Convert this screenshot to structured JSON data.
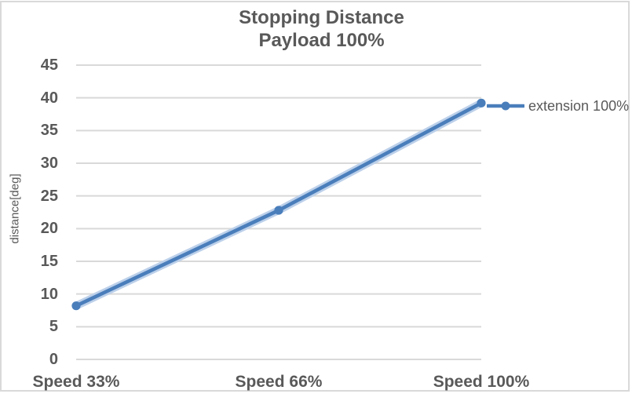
{
  "chart": {
    "title_line1": "Stopping Distance",
    "title_line2": "Payload 100%",
    "y_axis_title": "distance[deg]"
  },
  "chart_data": {
    "type": "line",
    "title": "Stopping Distance Payload 100%",
    "categories": [
      "Speed 33%",
      "Speed 66%",
      "Speed 100%"
    ],
    "series": [
      {
        "name": "extension 100%",
        "values": [
          8.2,
          22.8,
          39.2
        ]
      }
    ],
    "xlabel": "",
    "ylabel": "distance[deg]",
    "ylim": [
      0,
      45
    ],
    "yticks": [
      0,
      5,
      10,
      15,
      20,
      25,
      30,
      35,
      40,
      45
    ],
    "grid": true,
    "legend_position": "right",
    "marker": "circle"
  },
  "colors": {
    "series": "#4a7ebb",
    "series_halo": "#bcd0ea",
    "gridline": "#d9d9d9",
    "frame_border": "#d9d9d9",
    "text": "#595959"
  }
}
